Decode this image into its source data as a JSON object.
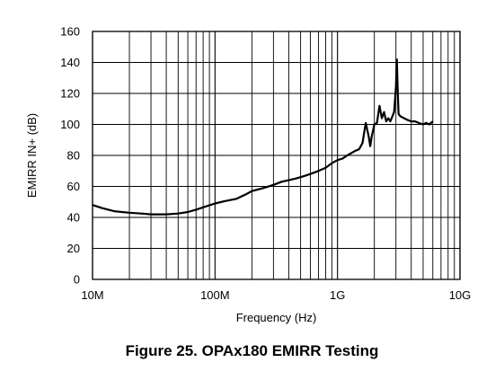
{
  "caption": "Figure 25.  OPAx180 EMIRR Testing",
  "chart_data": {
    "type": "line",
    "xlabel": "Frequency (Hz)",
    "ylabel": "EMIRR IN+ (dB)",
    "x_scale": "log",
    "xlim": [
      10000000,
      10000000000
    ],
    "ylim": [
      0,
      160
    ],
    "x_ticks": [
      {
        "value": 10000000,
        "label": "10M"
      },
      {
        "value": 100000000,
        "label": "100M"
      },
      {
        "value": 1000000000,
        "label": "1G"
      },
      {
        "value": 10000000000,
        "label": "10G"
      }
    ],
    "y_ticks": [
      0,
      20,
      40,
      60,
      80,
      100,
      120,
      140,
      160
    ],
    "grid": true,
    "line_color": "#000000",
    "series": [
      {
        "x": [
          10000000,
          12000000,
          15000000,
          20000000,
          25000000,
          30000000,
          40000000,
          50000000,
          60000000,
          70000000,
          80000000,
          100000000,
          120000000,
          150000000,
          180000000,
          200000000,
          250000000,
          300000000,
          350000000,
          400000000,
          450000000,
          500000000,
          550000000,
          600000000,
          700000000,
          800000000,
          900000000,
          1000000000,
          1100000000,
          1200000000,
          1400000000,
          1500000000,
          1600000000,
          1700000000,
          1800000000,
          1850000000,
          1900000000,
          2000000000,
          2100000000,
          2200000000,
          2300000000,
          2400000000,
          2500000000,
          2600000000,
          2700000000,
          2800000000,
          2900000000,
          3000000000,
          3050000000,
          3100000000,
          3150000000,
          3200000000,
          3300000000,
          3500000000,
          3700000000,
          4000000000,
          4300000000,
          4600000000,
          5000000000,
          5300000000,
          5600000000,
          6000000000
        ],
        "y": [
          48,
          46,
          44,
          43,
          42.5,
          42,
          42,
          42.5,
          43.5,
          45,
          46.5,
          49,
          50.5,
          52,
          55,
          57,
          59,
          61,
          63,
          64,
          65,
          66,
          67,
          68,
          70,
          72,
          75,
          77,
          78,
          80,
          83,
          84,
          88,
          101,
          92,
          86,
          92,
          100,
          101,
          112,
          104,
          108,
          102,
          104,
          102,
          105,
          108,
          124,
          142,
          122,
          107,
          106,
          105,
          104,
          103,
          102,
          102,
          101,
          100,
          101,
          100,
          102
        ]
      }
    ]
  }
}
